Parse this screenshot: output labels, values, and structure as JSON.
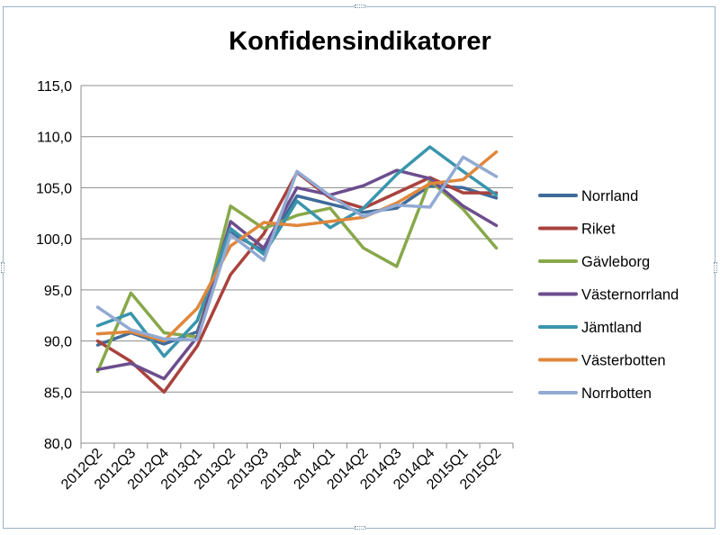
{
  "chart_data": {
    "type": "line",
    "title": "Konfidensindikatorer",
    "xlabel": "",
    "ylabel": "",
    "ylim": [
      80,
      115
    ],
    "yticks": [
      "80,0",
      "85,0",
      "90,0",
      "95,0",
      "100,0",
      "105,0",
      "110,0",
      "115,0"
    ],
    "grid": true,
    "legend_position": "right",
    "categories": [
      "2012Q2",
      "2012Q3",
      "2012Q4",
      "2013Q1",
      "2013Q2",
      "2013Q3",
      "2013Q4",
      "2014Q1",
      "2014Q2",
      "2014Q3",
      "2014Q4",
      "2015Q1",
      "2015Q2"
    ],
    "series": [
      {
        "name": "Norrland",
        "color": "#3e6b9a",
        "values": [
          89.6,
          90.8,
          89.7,
          90.9,
          100.6,
          98.8,
          104.2,
          103.4,
          102.6,
          103.0,
          105.2,
          105.0,
          104.0
        ]
      },
      {
        "name": "Riket",
        "color": "#a9423d",
        "values": [
          90.0,
          88.0,
          85.0,
          89.5,
          96.5,
          100.5,
          106.5,
          104.0,
          103.0,
          104.5,
          106.0,
          104.5,
          104.5
        ]
      },
      {
        "name": "Gävleborg",
        "color": "#87a84a",
        "values": [
          87.0,
          94.7,
          90.8,
          90.4,
          103.2,
          101.0,
          102.3,
          103.0,
          99.1,
          97.3,
          105.7,
          102.9,
          99.1
        ]
      },
      {
        "name": "Västernorrland",
        "color": "#6c4e8e",
        "values": [
          87.2,
          87.8,
          86.3,
          90.4,
          101.7,
          99.1,
          105.0,
          104.3,
          105.2,
          106.7,
          105.9,
          103.2,
          101.3
        ]
      },
      {
        "name": "Jämtland",
        "color": "#3a95ad",
        "values": [
          91.5,
          92.7,
          88.5,
          92.0,
          101.0,
          98.5,
          103.7,
          101.1,
          103.0,
          106.3,
          109.0,
          106.6,
          104.3
        ]
      },
      {
        "name": "Västerbotten",
        "color": "#e0873c",
        "values": [
          90.7,
          90.9,
          90.0,
          93.2,
          99.3,
          101.6,
          101.3,
          101.7,
          102.1,
          103.5,
          105.4,
          105.8,
          108.5
        ]
      },
      {
        "name": "Norrbotten",
        "color": "#92aad2",
        "values": [
          93.3,
          91.1,
          90.2,
          90.1,
          100.4,
          97.9,
          106.6,
          104.2,
          102.2,
          103.3,
          103.1,
          108.0,
          106.1
        ]
      }
    ]
  }
}
